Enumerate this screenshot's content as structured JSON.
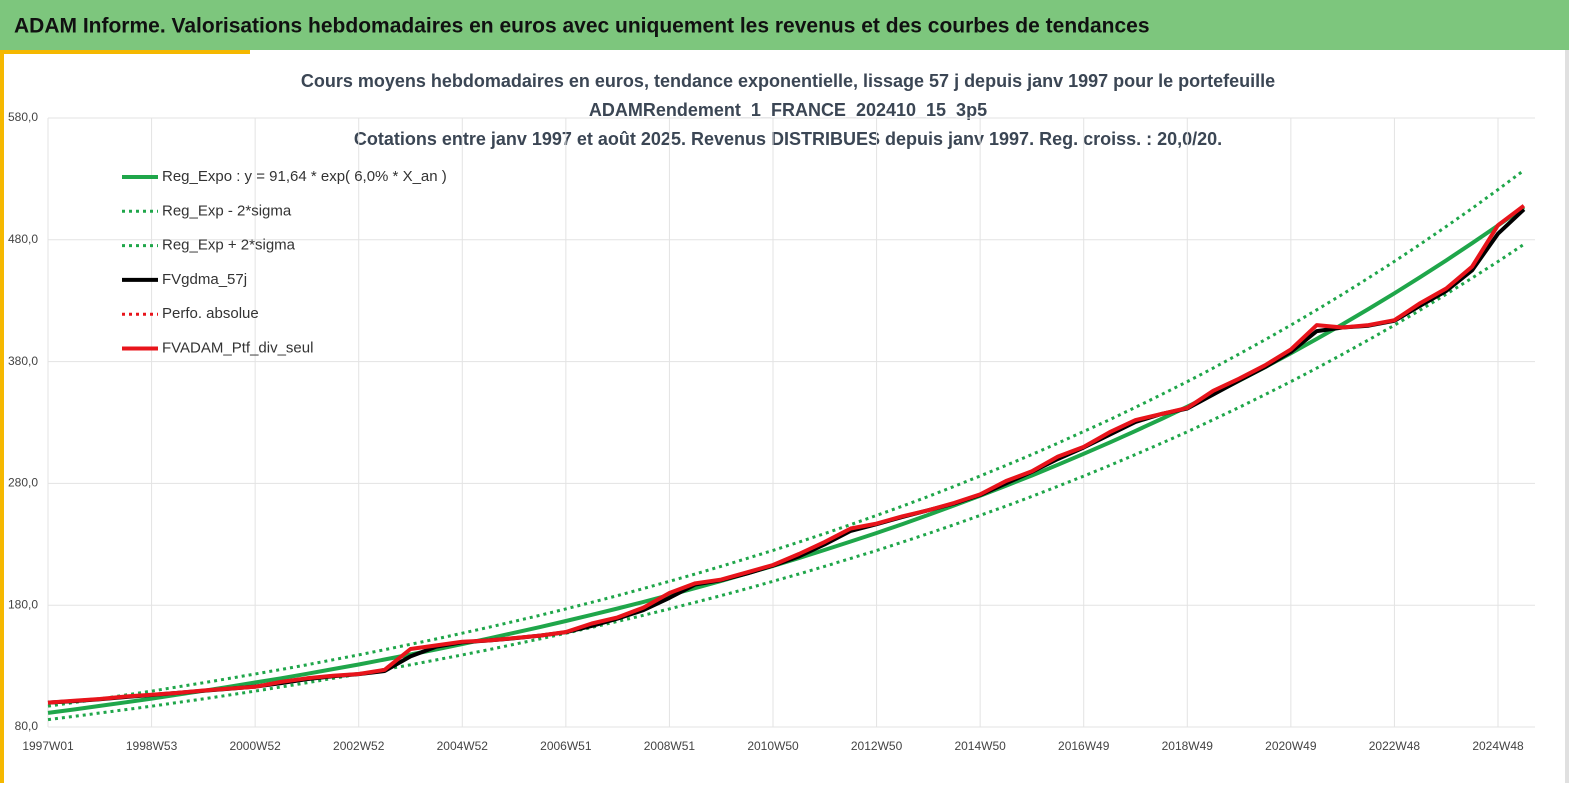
{
  "header": {
    "title": "ADAM Informe. Valorisations hebdomadaires en euros avec uniquement les revenus et des courbes de tendances"
  },
  "chart_data": {
    "type": "line",
    "title": "Cours moyens hebdomadaires  en euros, tendance exponentielle, lissage 57 j depuis janv 1997 pour le portefeuille",
    "subtitle": "ADAMRendement_1_FRANCE_202410_15_3p5",
    "subtitle2": "Cotations  entre janv 1997 et août 2025. Revenus DISTRIBUES depuis janv 1997. Reg. croiss. : 20,0/20.",
    "categories": [
      "1997W01",
      null,
      null,
      null,
      "1998W53",
      null,
      null,
      null,
      "2000W52",
      null,
      null,
      null,
      "2002W52",
      null,
      null,
      null,
      "2004W52",
      null,
      null,
      null,
      "2006W51",
      null,
      null,
      null,
      "2008W51",
      null,
      null,
      null,
      "2010W50",
      null,
      null,
      null,
      "2012W50",
      null,
      null,
      null,
      "2014W50",
      null,
      null,
      null,
      "2016W49",
      null,
      null,
      null,
      "2018W49",
      null,
      null,
      null,
      "2020W49",
      null,
      null,
      null,
      "2022W48",
      null,
      null,
      null,
      "2024W48",
      null
    ],
    "ylim": [
      80,
      580
    ],
    "yticks": [
      {
        "value": 80,
        "label": "80,0"
      },
      {
        "value": 180,
        "label": "180,0"
      },
      {
        "value": 280,
        "label": "280,0"
      },
      {
        "value": 380,
        "label": "380,0"
      },
      {
        "value": 480,
        "label": "480,0"
      },
      {
        "value": 580,
        "label": "580,0"
      }
    ],
    "grid": true,
    "legend": "top-left",
    "series": [
      {
        "name": "Reg_Expo : y = 91,64 * exp( 6,0% *  X_an )",
        "color": "#1fa64a",
        "style": "solid",
        "values": [
          91.6,
          94.4,
          97.3,
          100.3,
          103.3,
          106.5,
          109.7,
          113.1,
          116.5,
          120.0,
          123.7,
          127.5,
          131.3,
          135.4,
          139.5,
          143.7,
          148.1,
          152.6,
          157.3,
          162.0,
          167.0,
          172.1,
          177.3,
          182.7,
          188.3,
          194.0,
          199.9,
          206.0,
          212.3,
          218.7,
          225.4,
          232.3,
          239.3,
          246.6,
          254.1,
          261.9,
          269.9,
          278.1,
          286.5,
          295.3,
          304.3,
          313.5,
          323.1,
          332.9,
          343.0,
          353.5,
          364.3,
          375.4,
          386.8,
          398.6,
          410.7,
          423.2,
          436.1,
          449.4,
          463.1,
          477.2,
          491.7,
          506.7
        ]
      },
      {
        "name": "Reg_Exp - 2*sigma",
        "color": "#1fa64a",
        "style": "dotted",
        "values": [
          86.1,
          88.7,
          91.5,
          94.3,
          97.1,
          100.1,
          103.1,
          106.3,
          109.5,
          112.8,
          116.3,
          119.9,
          123.4,
          127.3,
          131.1,
          135.1,
          139.2,
          143.4,
          147.9,
          152.3,
          157.0,
          161.8,
          166.7,
          171.7,
          177.0,
          182.4,
          187.9,
          193.6,
          199.6,
          205.6,
          211.9,
          218.4,
          224.9,
          231.8,
          238.9,
          246.2,
          253.7,
          261.4,
          269.3,
          277.6,
          286.0,
          294.7,
          303.7,
          312.9,
          322.4,
          332.3,
          342.4,
          352.9,
          363.6,
          374.7,
          386.1,
          397.8,
          409.9,
          422.4,
          435.3,
          448.6,
          462.2,
          476.3
        ]
      },
      {
        "name": "Reg_Exp + 2*sigma",
        "color": "#1fa64a",
        "style": "dotted",
        "values": [
          97.1,
          100.1,
          103.1,
          106.3,
          109.5,
          112.9,
          116.3,
          119.9,
          123.5,
          127.2,
          131.1,
          135.2,
          139.2,
          143.5,
          147.9,
          152.3,
          157.0,
          161.8,
          166.7,
          171.7,
          177.0,
          182.4,
          187.9,
          193.7,
          199.6,
          205.6,
          211.9,
          218.4,
          225.0,
          231.8,
          238.9,
          246.2,
          253.7,
          261.4,
          269.3,
          277.6,
          286.1,
          294.8,
          303.7,
          313.0,
          322.6,
          332.3,
          342.5,
          352.9,
          363.6,
          374.7,
          386.2,
          397.9,
          410.0,
          422.5,
          435.3,
          448.6,
          462.3,
          476.4,
          490.9,
          505.8,
          521.2,
          537.1
        ]
      },
      {
        "name": "FVgdma_57j",
        "color": "#000000",
        "style": "solid",
        "values": [
          100,
          101.3,
          102.8,
          104.6,
          106.3,
          108,
          109.7,
          111.4,
          113.2,
          116,
          119.3,
          121.6,
          123.4,
          126,
          138,
          146,
          149.5,
          151,
          152.8,
          155,
          157.8,
          163,
          169,
          176,
          186,
          197,
          200.5,
          206,
          212.5,
          220,
          230,
          241,
          246.5,
          252.5,
          258,
          263.5,
          270.5,
          280,
          289.5,
          300,
          309.5,
          320,
          330.5,
          337,
          341.5,
          353,
          364.5,
          375.5,
          388,
          405,
          408,
          409.5,
          413.5,
          426,
          438,
          455,
          485,
          505
        ]
      },
      {
        "name": "Perfo. absolue",
        "color": "#e8141b",
        "style": "dotted",
        "values": [
          100,
          101.5,
          103,
          105,
          106.5,
          108,
          110,
          111.5,
          113,
          117,
          120,
          122,
          123.5,
          127,
          144,
          147,
          150,
          151,
          153,
          155,
          158,
          165,
          170,
          178,
          190,
          198,
          201,
          207,
          213,
          222,
          232,
          243,
          247,
          253,
          258,
          264,
          271,
          282,
          290,
          302,
          310,
          322,
          332,
          337,
          342,
          356,
          366,
          377,
          390,
          410,
          408,
          410,
          414,
          428,
          440,
          458,
          492,
          508
        ]
      },
      {
        "name": "FVADAM_Ptf_div_seul",
        "color": "#e8141b",
        "style": "solid",
        "values": [
          100,
          101.5,
          103,
          105,
          106.5,
          108,
          110,
          111.5,
          113,
          117,
          120,
          122,
          123.5,
          127,
          144,
          147,
          150,
          151,
          153,
          155,
          158,
          165,
          170,
          178,
          190,
          198,
          201,
          207,
          213,
          222,
          232,
          243,
          247,
          253,
          258,
          264,
          271,
          282,
          290,
          302,
          310,
          322,
          332,
          337,
          342,
          356,
          366,
          377,
          390,
          410,
          408,
          410,
          414,
          428,
          440,
          458,
          492,
          508
        ]
      }
    ]
  }
}
